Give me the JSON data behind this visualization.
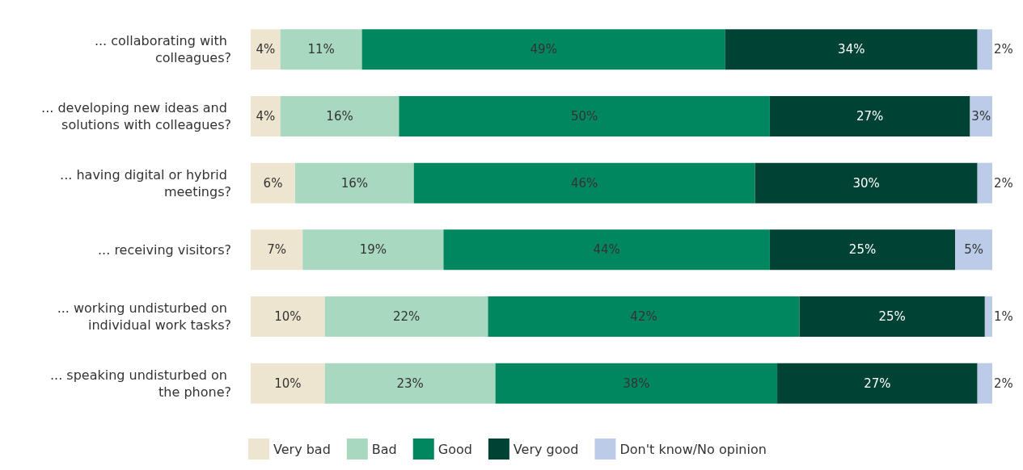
{
  "chart_data": {
    "type": "bar",
    "orientation": "horizontal",
    "stacked": true,
    "legend": "bottom",
    "tick_labels": "y",
    "categories": [
      "... collaborating with colleagues?",
      "... developing new ideas and solutions with colleagues?",
      "... having digital or hybrid meetings?",
      "... receiving visitors?",
      "... working undisturbed on individual work tasks?",
      "... speaking undisturbed on the phone?"
    ],
    "series": [
      {
        "name": "Very bad",
        "color": "#ede5d0",
        "values": [
          4,
          4,
          6,
          7,
          10,
          10
        ],
        "value_labels": [
          "4%",
          "4%",
          "6%",
          "7%",
          "10%",
          "10%"
        ]
      },
      {
        "name": "Bad",
        "color": "#a8d8c0",
        "values": [
          11,
          16,
          16,
          19,
          22,
          23
        ],
        "value_labels": [
          "11%",
          "16%",
          "16%",
          "19%",
          "22%",
          "23%"
        ]
      },
      {
        "name": "Good",
        "color": "#00875f",
        "values": [
          49,
          50,
          46,
          44,
          42,
          38
        ],
        "value_labels": [
          "49%",
          "50%",
          "46%",
          "44%",
          "42%",
          "38%"
        ]
      },
      {
        "name": "Very good",
        "color": "#004234",
        "values": [
          34,
          27,
          30,
          25,
          25,
          27
        ],
        "value_labels": [
          "34%",
          "27%",
          "30%",
          "25%",
          "25%",
          "27%"
        ]
      },
      {
        "name": "Don't know/No opinion",
        "color": "#bccbe8",
        "values": [
          2,
          3,
          2,
          5,
          1,
          2
        ],
        "value_labels": [
          "2%",
          "3%",
          "2%",
          "5%",
          "1%",
          "2%"
        ]
      }
    ]
  }
}
